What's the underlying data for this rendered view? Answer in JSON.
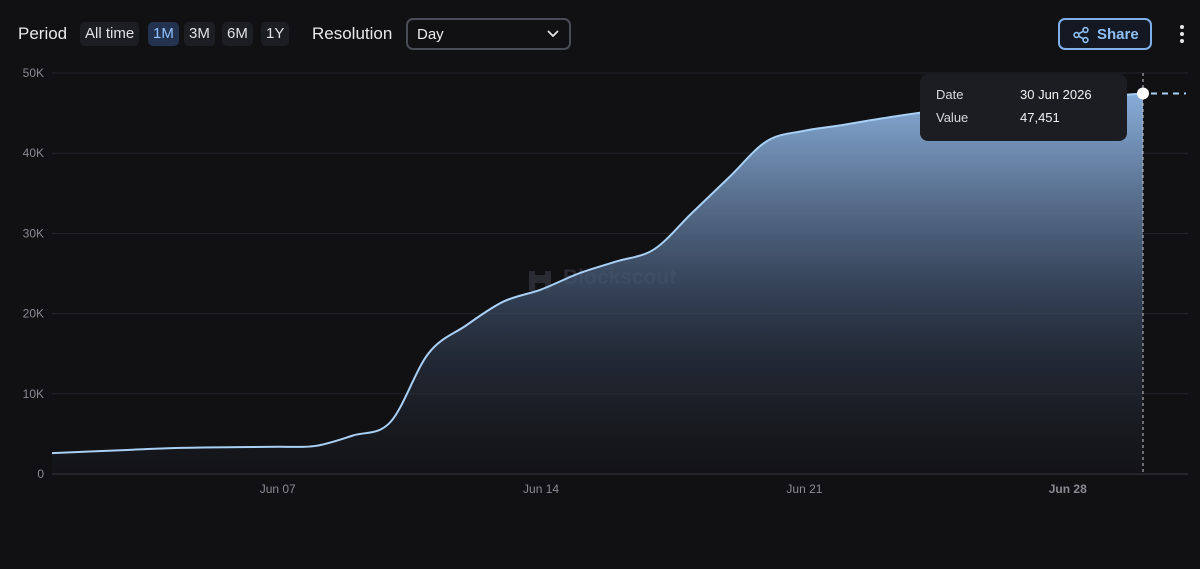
{
  "toolbar": {
    "period_label": "Period",
    "periods": [
      "All time",
      "1M",
      "3M",
      "6M",
      "1Y"
    ],
    "active_period": "1M",
    "resolution_label": "Resolution",
    "resolution_value": "Day",
    "share_label": "Share"
  },
  "watermark": "Blockscout",
  "tooltip": {
    "date_label": "Date",
    "date_value": "30 Jun 2026",
    "value_label": "Value",
    "value_value": "47,451"
  },
  "colors": {
    "line": "#a9d0f5",
    "area_top": "#8fb6e4",
    "accent": "#90c2ff"
  },
  "chart_data": {
    "type": "area",
    "x_tick_labels": [
      "Jun 07",
      "Jun 14",
      "Jun 21",
      "Jun 28"
    ],
    "y_tick_labels": [
      "0",
      "10K",
      "20K",
      "30K",
      "40K",
      "50K"
    ],
    "ylim": [
      0,
      50000
    ],
    "xlim": [
      "2026-06-01",
      "2026-06-30"
    ],
    "x": [
      "2026-06-01",
      "2026-06-02",
      "2026-06-03",
      "2026-06-04",
      "2026-06-05",
      "2026-06-06",
      "2026-06-07",
      "2026-06-08",
      "2026-06-09",
      "2026-06-10",
      "2026-06-11",
      "2026-06-12",
      "2026-06-13",
      "2026-06-14",
      "2026-06-15",
      "2026-06-16",
      "2026-06-17",
      "2026-06-18",
      "2026-06-19",
      "2026-06-20",
      "2026-06-21",
      "2026-06-22",
      "2026-06-23",
      "2026-06-24",
      "2026-06-25",
      "2026-06-26",
      "2026-06-27",
      "2026-06-28",
      "2026-06-29",
      "2026-06-30"
    ],
    "values": [
      2600,
      2800,
      3000,
      3200,
      3300,
      3350,
      3400,
      3500,
      4800,
      6500,
      15000,
      18500,
      21500,
      23000,
      25000,
      26500,
      28000,
      32500,
      37000,
      41500,
      42800,
      43500,
      44300,
      45000,
      45600,
      46000,
      46400,
      46800,
      47100,
      47451
    ],
    "highlight_index": 29,
    "grid": true
  }
}
